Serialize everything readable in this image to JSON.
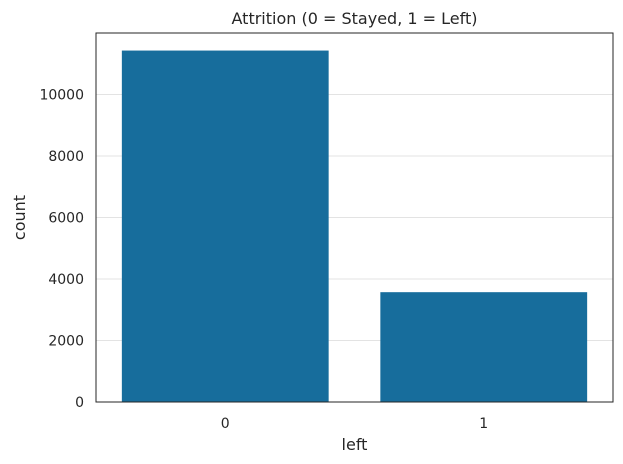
{
  "chart_data": {
    "type": "bar",
    "title": "Attrition (0 = Stayed, 1 = Left)",
    "xlabel": "left",
    "ylabel": "count",
    "categories": [
      "0",
      "1"
    ],
    "values": [
      11428,
      3571
    ],
    "ylim": [
      0,
      11999
    ],
    "yticks": [
      0,
      2000,
      4000,
      6000,
      8000,
      10000
    ],
    "ytick_labels": [
      "0",
      "2000",
      "4000",
      "6000",
      "8000",
      "10000"
    ],
    "grid": "horizontal",
    "bar_color": "#176d9c",
    "grid_color": "#e3e3e3"
  }
}
